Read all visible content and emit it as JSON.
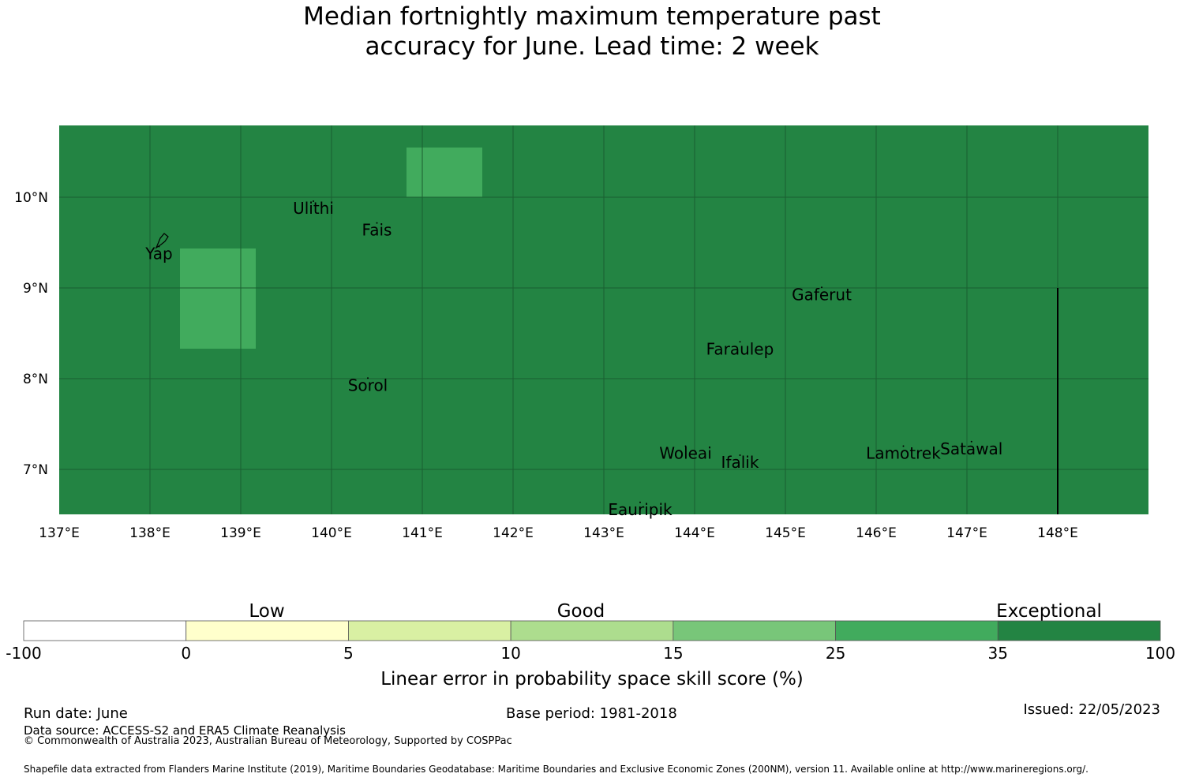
{
  "title": {
    "line1": "Median fortnightly maximum temperature past",
    "line2": "accuracy for June. Lead time: 2 week"
  },
  "map": {
    "background_color": "#238443",
    "highlight_color": "#41ab5d",
    "lon_range": [
      137,
      149
    ],
    "lat_range": [
      6.5,
      10.8
    ],
    "lon_ticks": [
      "137°E",
      "138°E",
      "139°E",
      "140°E",
      "141°E",
      "142°E",
      "143°E",
      "144°E",
      "145°E",
      "146°E",
      "147°E",
      "148°E"
    ],
    "lat_ticks": [
      "10°N",
      "9°N",
      "8°N",
      "7°N"
    ],
    "places": [
      {
        "name": "Ulithi",
        "lon": 139.8,
        "lat": 10.0
      },
      {
        "name": "Fais",
        "lon": 140.5,
        "lat": 9.76
      },
      {
        "name": "Yap",
        "lon": 138.1,
        "lat": 9.5
      },
      {
        "name": "Gaferut",
        "lon": 145.4,
        "lat": 9.05
      },
      {
        "name": "Faraulep",
        "lon": 144.5,
        "lat": 8.45
      },
      {
        "name": "Sorol",
        "lon": 140.4,
        "lat": 8.05
      },
      {
        "name": "Woleai",
        "lon": 143.9,
        "lat": 7.3
      },
      {
        "name": "Ifalik",
        "lon": 144.5,
        "lat": 7.2
      },
      {
        "name": "Lamotrek",
        "lon": 146.3,
        "lat": 7.3
      },
      {
        "name": "Satawal",
        "lon": 147.05,
        "lat": 7.35
      },
      {
        "name": "Eauripik",
        "lon": 143.4,
        "lat": 6.68
      }
    ]
  },
  "colorbar": {
    "categories": [
      "Low",
      "Good",
      "Exceptional"
    ],
    "ticks": [
      "-100",
      "0",
      "5",
      "10",
      "15",
      "25",
      "35",
      "100"
    ],
    "colors": [
      "#ffffff",
      "#ffffcc",
      "#d9f0a3",
      "#addd8e",
      "#78c679",
      "#41ab5d",
      "#238443"
    ],
    "label": "Linear error in probability space skill score (%)"
  },
  "footer": {
    "run_date": "Run date: June",
    "base_period": "Base period: 1981-2018",
    "issued": "Issued: 22/05/2023",
    "data_source": "Data source: ACCESS-S2 and ERA5 Climate Reanalysis",
    "copyright": "© Commonwealth of Australia 2023, Australian Bureau of Meteorology, Supported by COSPPac",
    "shapefile": "Shapefile data extracted from Flanders Marine Institute (2019), Maritime Boundaries Geodatabase: Maritime Boundaries and Exclusive Economic Zones (200NM), version 11. Available online at http://www.marineregions.org/."
  }
}
